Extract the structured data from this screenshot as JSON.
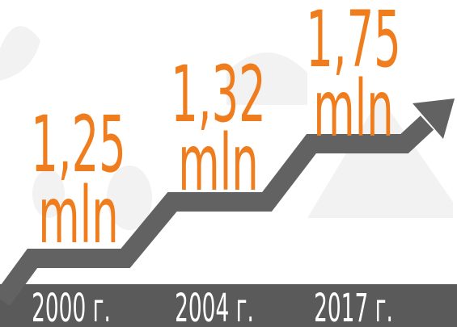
{
  "items": [
    {
      "amount": "1,25",
      "unit": "mln",
      "year": "2000 г."
    },
    {
      "amount": "1,32",
      "unit": "mln",
      "year": "2004 г."
    },
    {
      "amount": "1,75",
      "unit": "mln",
      "year": "2017 г."
    }
  ]
}
